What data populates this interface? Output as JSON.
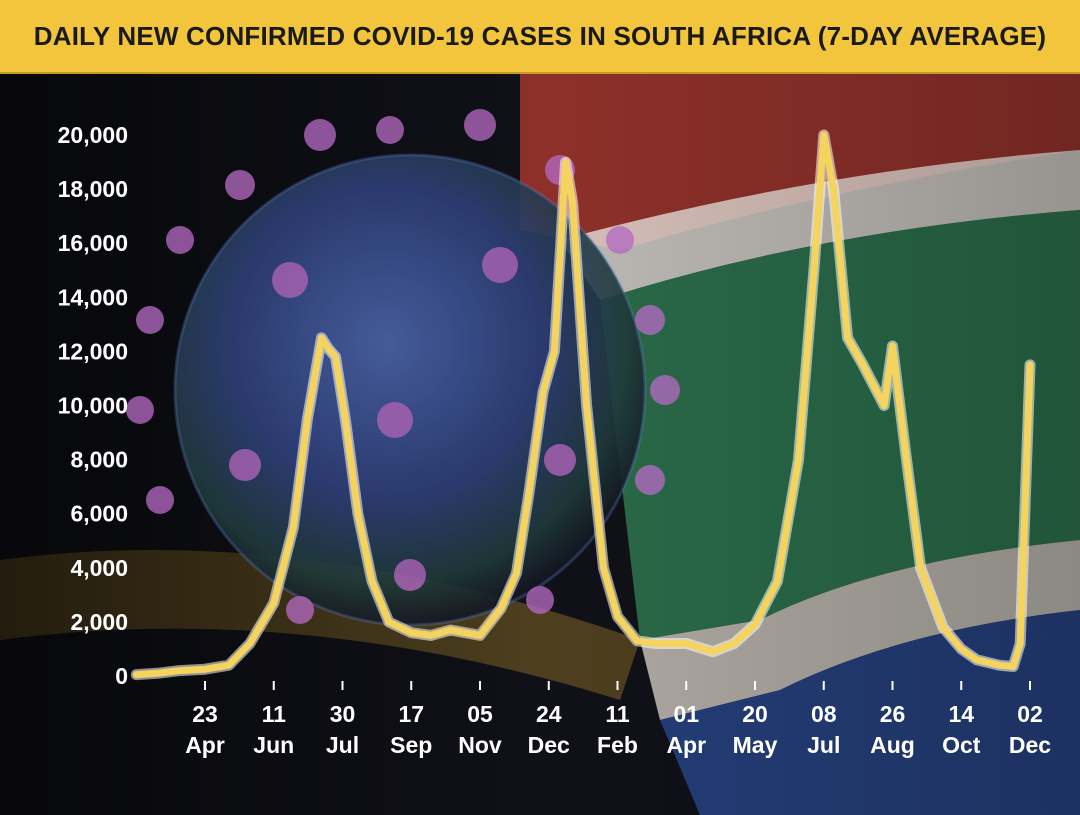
{
  "chart_data": {
    "type": "line",
    "title": "DAILY NEW CONFIRMED COVID-19 CASES IN SOUTH AFRICA (7-DAY AVERAGE)",
    "xlabel": "",
    "ylabel": "",
    "ylim": [
      0,
      20000
    ],
    "y_ticks": [
      "0",
      "2,000",
      "4,000",
      "6,000",
      "8,000",
      "10,000",
      "12,000",
      "14,000",
      "16,000",
      "18,000",
      "20,000"
    ],
    "x_ticks": [
      {
        "day": "23",
        "month": "Apr",
        "date": "2020-04-23"
      },
      {
        "day": "11",
        "month": "Jun",
        "date": "2020-06-11"
      },
      {
        "day": "30",
        "month": "Jul",
        "date": "2020-07-30"
      },
      {
        "day": "17",
        "month": "Sep",
        "date": "2020-09-17"
      },
      {
        "day": "05",
        "month": "Nov",
        "date": "2020-11-05"
      },
      {
        "day": "24",
        "month": "Dec",
        "date": "2020-12-24"
      },
      {
        "day": "11",
        "month": "Feb",
        "date": "2021-02-11"
      },
      {
        "day": "01",
        "month": "Apr",
        "date": "2021-04-01"
      },
      {
        "day": "20",
        "month": "May",
        "date": "2021-05-20"
      },
      {
        "day": "08",
        "month": "Jul",
        "date": "2021-07-08"
      },
      {
        "day": "26",
        "month": "Aug",
        "date": "2021-08-26"
      },
      {
        "day": "14",
        "month": "Oct",
        "date": "2021-10-14"
      },
      {
        "day": "02",
        "month": "Dec",
        "date": "2021-12-02"
      }
    ],
    "grid": false,
    "legend": "none",
    "line_color": "#f4d35e",
    "series": [
      {
        "x": [
          "2020-03-05",
          "2020-03-20",
          "2020-04-05",
          "2020-04-23",
          "2020-05-10",
          "2020-05-25",
          "2020-06-11",
          "2020-06-25",
          "2020-07-05",
          "2020-07-15",
          "2020-07-20",
          "2020-07-25",
          "2020-08-01",
          "2020-08-10",
          "2020-08-20",
          "2020-09-01",
          "2020-09-17",
          "2020-10-01",
          "2020-10-15",
          "2020-11-05",
          "2020-11-20",
          "2020-12-01",
          "2020-12-10",
          "2020-12-20",
          "2020-12-28",
          "2021-01-05",
          "2021-01-10",
          "2021-01-20",
          "2021-02-01",
          "2021-02-11",
          "2021-02-25",
          "2021-03-10",
          "2021-04-01",
          "2021-04-20",
          "2021-05-05",
          "2021-05-20",
          "2021-06-05",
          "2021-06-20",
          "2021-07-01",
          "2021-07-08",
          "2021-07-15",
          "2021-07-25",
          "2021-08-05",
          "2021-08-15",
          "2021-08-20",
          "2021-08-26",
          "2021-09-05",
          "2021-09-15",
          "2021-10-01",
          "2021-10-14",
          "2021-10-25",
          "2021-11-10",
          "2021-11-20",
          "2021-11-25",
          "2021-12-02"
        ],
        "y": [
          50,
          100,
          200,
          250,
          400,
          1200,
          2700,
          5500,
          9500,
          12500,
          12100,
          11800,
          9500,
          6000,
          3500,
          2000,
          1600,
          1500,
          1700,
          1500,
          2500,
          3800,
          6800,
          10500,
          12000,
          19000,
          17500,
          10000,
          4000,
          2200,
          1300,
          1200,
          1200,
          900,
          1200,
          1900,
          3500,
          8000,
          15000,
          20000,
          18000,
          12500,
          11500,
          10500,
          10000,
          12200,
          8000,
          4000,
          1800,
          1000,
          600,
          400,
          350,
          1200,
          11500
        ]
      }
    ]
  }
}
